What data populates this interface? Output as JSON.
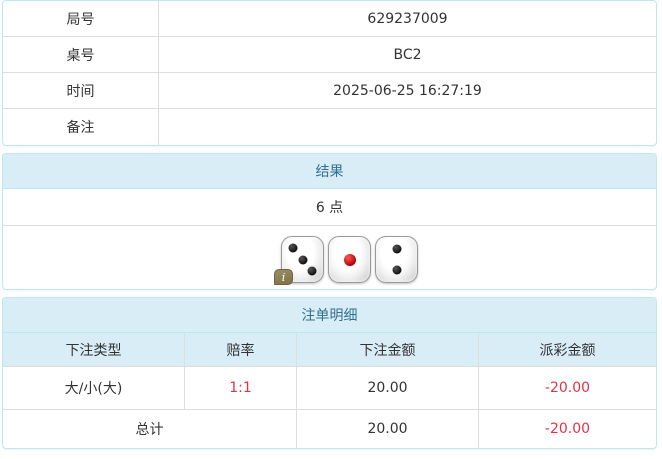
{
  "info_table": {
    "rows": [
      {
        "label": "局号",
        "value": "629237009"
      },
      {
        "label": "桌号",
        "value": "BC2"
      },
      {
        "label": "时间",
        "value": "2025-06-25 16:27:19"
      },
      {
        "label": "备注",
        "value": ""
      }
    ]
  },
  "result_panel": {
    "title": "结果",
    "points": "6 点",
    "dice": [
      {
        "value": 3,
        "pip_color": "black",
        "has_info_badge": true
      },
      {
        "value": 1,
        "pip_color": "red",
        "has_info_badge": false
      },
      {
        "value": 2,
        "pip_color": "black",
        "has_info_badge": false
      }
    ],
    "info_badge_label": "i"
  },
  "bet_panel": {
    "title": "注单明细",
    "columns": [
      "下注类型",
      "赔率",
      "下注金额",
      "派彩金额"
    ],
    "rows": [
      {
        "bet_type": "大/小(大)",
        "odds": "1:1",
        "bet_amount": "20.00",
        "payout": "-20.00"
      }
    ],
    "total": {
      "label": "总计",
      "bet_amount": "20.00",
      "payout": "-20.00"
    }
  },
  "colors": {
    "panel_border": "#bce8f1",
    "heading_bg": "#d9edf7",
    "heading_text": "#31708f",
    "grid_line": "#dddddd",
    "negative_text": "#dc3545",
    "body_text": "#333333",
    "badge_bg": "#8a7e52"
  }
}
